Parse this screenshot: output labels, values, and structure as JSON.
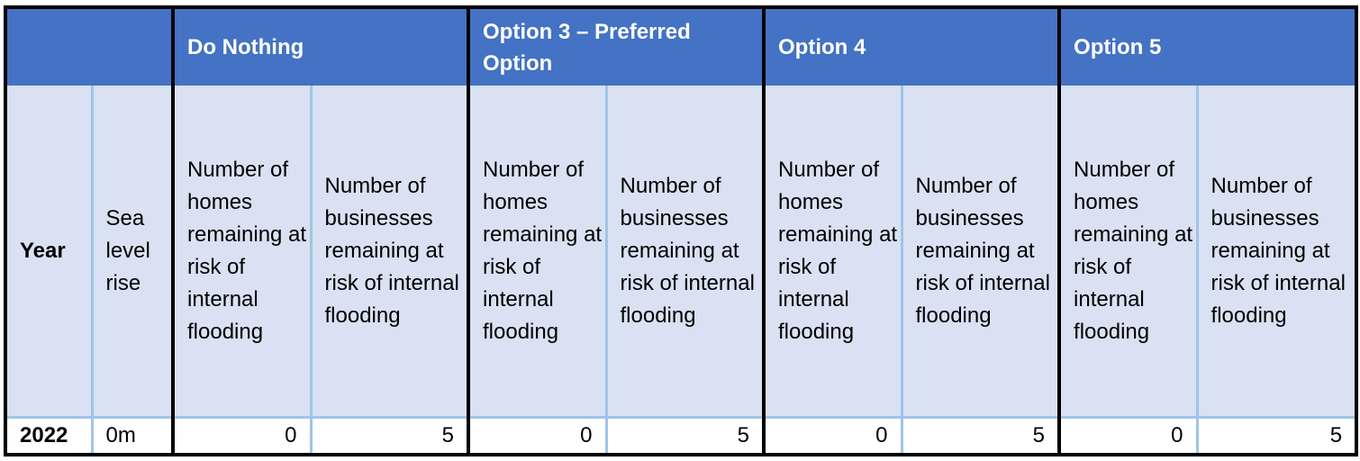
{
  "table": {
    "groups": [
      {
        "title": "Do Nothing"
      },
      {
        "title": "Option 3 – Preferred Option"
      },
      {
        "title": "Option 4"
      },
      {
        "title": "Option 5"
      }
    ],
    "col_headers": {
      "year": "Year",
      "sea_level_rise": "Sea level rise",
      "homes": "Number of homes remaining at risk of internal flooding",
      "businesses": "Number of businesses remaining at risk of internal flooding"
    },
    "rows": [
      {
        "year": "2022",
        "sea_level_rise": "0m",
        "values": [
          "0",
          "5",
          "0",
          "5",
          "0",
          "5",
          "0",
          "5"
        ]
      }
    ]
  }
}
